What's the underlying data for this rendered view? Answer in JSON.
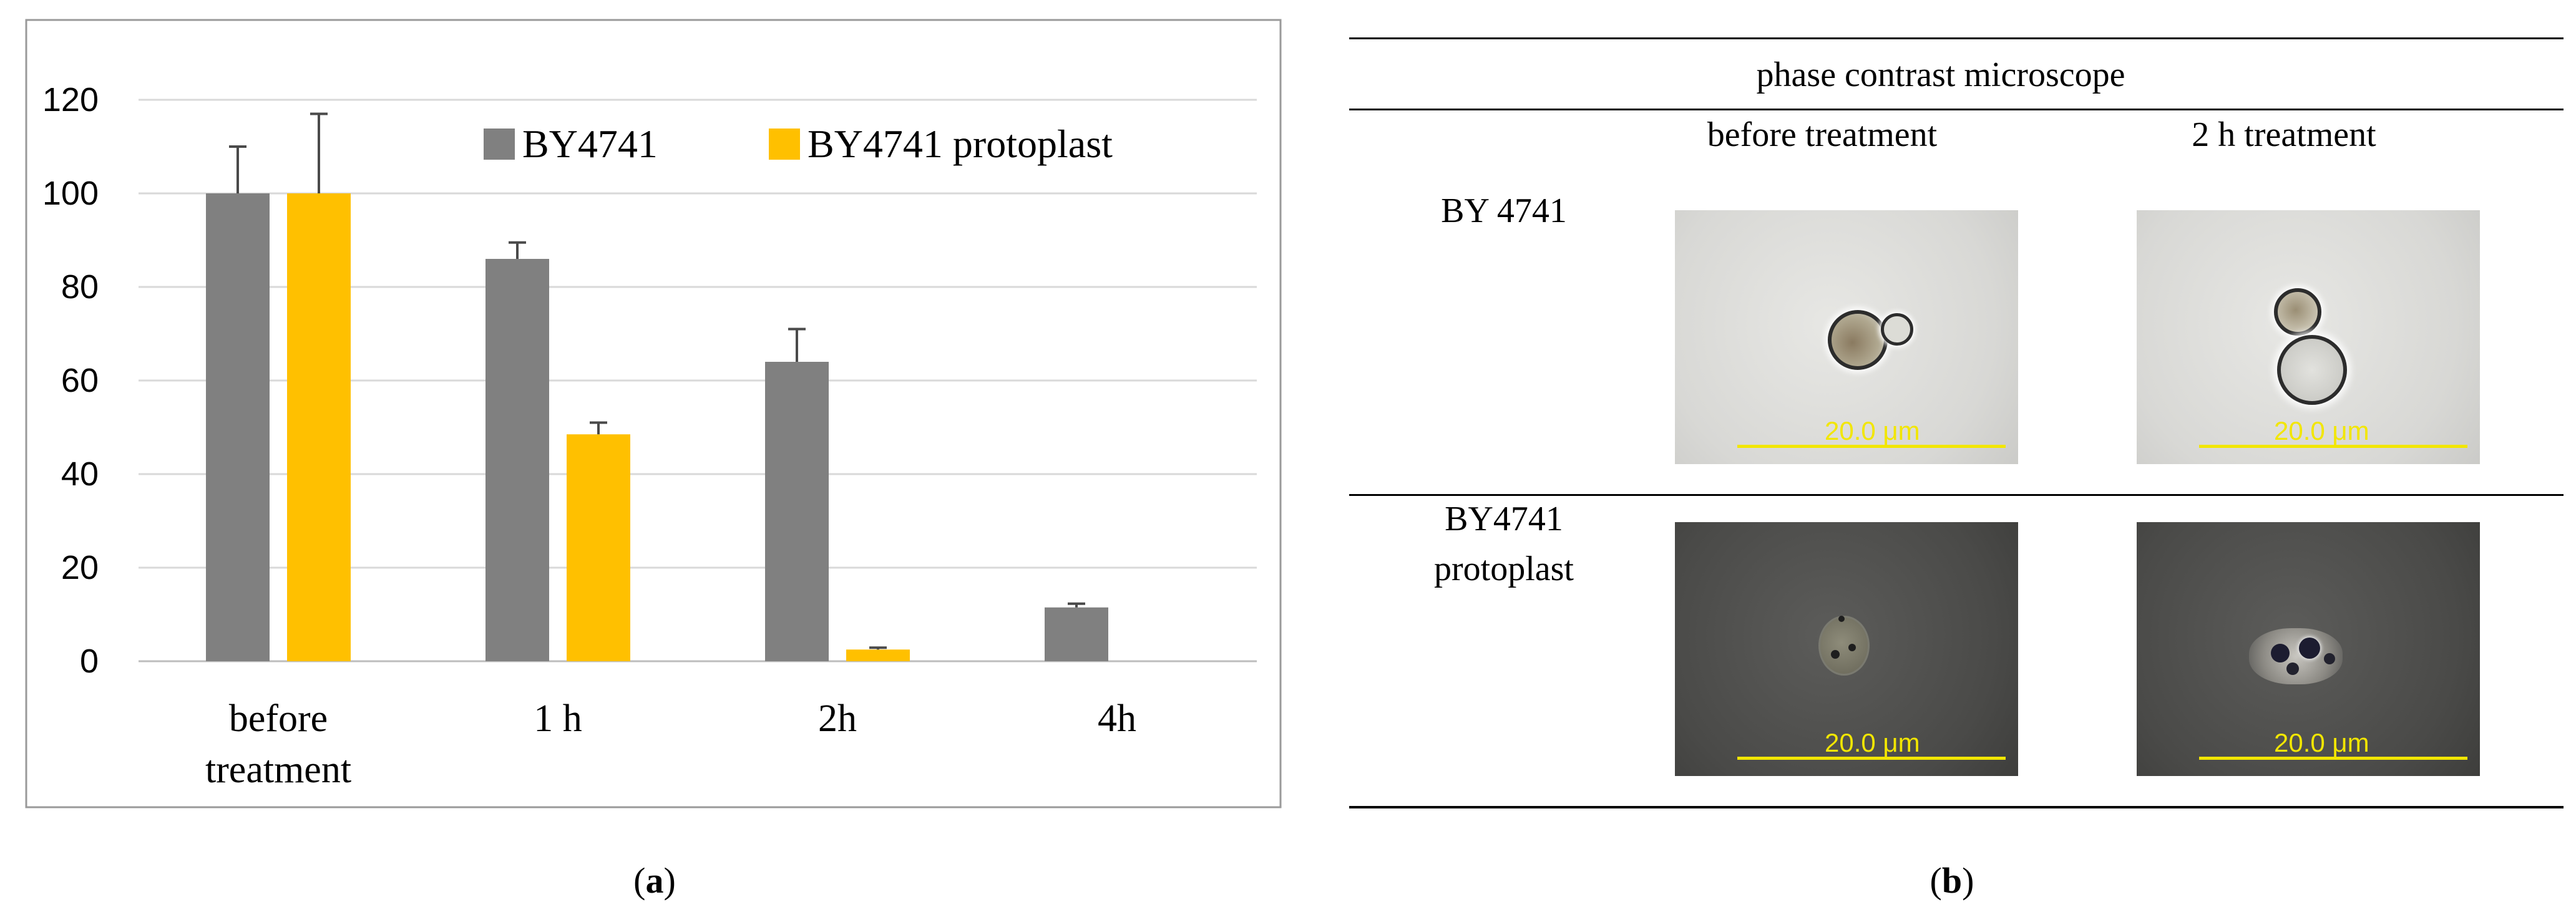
{
  "chart_data": {
    "type": "bar",
    "categories": [
      "before treatment",
      "1 h",
      "2h",
      "4h"
    ],
    "category_lines": [
      [
        "before",
        "treatment"
      ],
      [
        "1 h"
      ],
      [
        "2h"
      ],
      [
        "4h"
      ]
    ],
    "series": [
      {
        "name": "BY4741",
        "values": [
          100,
          86,
          64,
          11.5
        ],
        "errors": [
          10,
          3.5,
          7,
          0.8
        ],
        "color": "#808080"
      },
      {
        "name": "BY4741 protoplast",
        "values": [
          100,
          48.5,
          2.5,
          null
        ],
        "errors": [
          17,
          2.5,
          0.4,
          null
        ],
        "color": "#ffc000"
      }
    ],
    "ylim": [
      0,
      120
    ],
    "yticks": [
      0,
      20,
      40,
      60,
      80,
      100,
      120
    ],
    "grid": true,
    "legend": "top-right",
    "title": "",
    "xlabel": "",
    "ylabel": ""
  },
  "captions": {
    "a": "a",
    "b": "b"
  },
  "panel_b": {
    "header": "phase contrast microscope",
    "col_headers": [
      "before treatment",
      "2 h treatment"
    ],
    "rows": [
      {
        "label_lines": [
          "BY 4741"
        ],
        "scale_labels": [
          "20.0 μm",
          "20.0 μm"
        ]
      },
      {
        "label_lines": [
          "BY4741",
          "protoplast"
        ],
        "scale_labels": [
          "20.0 μm",
          "20.0 μm"
        ]
      }
    ]
  },
  "colors": {
    "gray": "#808080",
    "yellow": "#ffc000",
    "scale": "#f2e600"
  }
}
